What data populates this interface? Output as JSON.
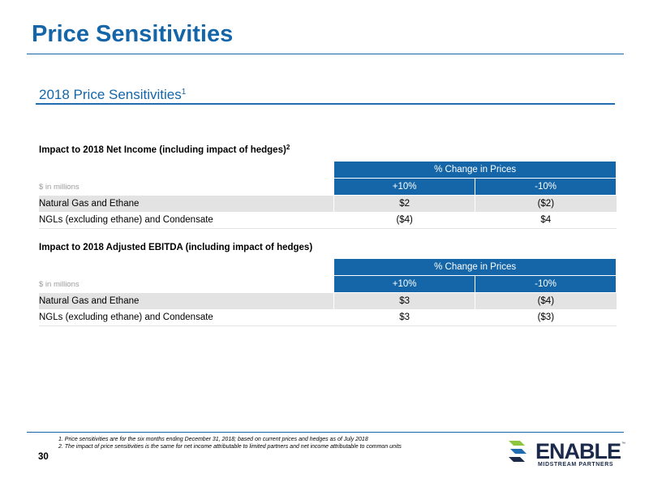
{
  "slide": {
    "title": "Price Sensitivities",
    "subtitle": "2018 Price Sensitivities",
    "subtitle_sup": "1",
    "page_number": "30"
  },
  "tables": [
    {
      "heading": "Impact to 2018 Net Income (including impact of hedges)",
      "heading_sup": "2",
      "group_header": "% Change in Prices",
      "units": "$ in millions",
      "columns": [
        "+10%",
        "-10%"
      ],
      "rows": [
        {
          "label": "Natural Gas and Ethane",
          "values": [
            "$2",
            "($2)"
          ]
        },
        {
          "label": "NGLs (excluding ethane) and Condensate",
          "values": [
            "($4)",
            "$4"
          ]
        }
      ]
    },
    {
      "heading": "Impact to 2018 Adjusted EBITDA (including impact of hedges)",
      "heading_sup": "",
      "group_header": "% Change in Prices",
      "units": "$ in millions",
      "columns": [
        "+10%",
        "-10%"
      ],
      "rows": [
        {
          "label": "Natural Gas and Ethane",
          "values": [
            "$3",
            "($4)"
          ]
        },
        {
          "label": "NGLs (excluding ethane) and Condensate",
          "values": [
            "$3",
            "($3)"
          ]
        }
      ]
    }
  ],
  "footnotes": [
    "1.  Price sensitivities are for the six months ending December 31, 2018; based on current prices and hedges as of July 2018",
    "2.  The impact of price sensitivities is the same for net income attributable to limited partners and net income attributable to common units"
  ],
  "logo": {
    "word": "ENABLE",
    "tm": "™",
    "tagline": "MIDSTREAM PARTNERS"
  },
  "colors": {
    "accent": "#1466a8",
    "row_alt": "#e3e3e3",
    "logo_green": "#8dc63f",
    "logo_blue": "#1f6db0"
  }
}
